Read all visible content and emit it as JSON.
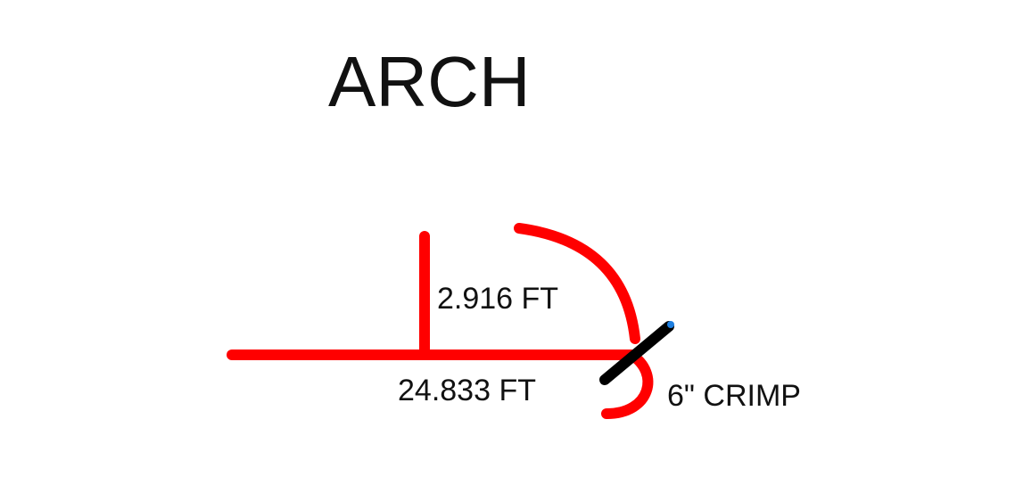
{
  "title": "ARCH",
  "dimensions": {
    "height_label": "2.916 FT",
    "length_label": "24.833 FT",
    "crimp_label": "6\" CRIMP"
  },
  "colors": {
    "profile_stroke": "#ff0000",
    "crimp_tool": "#000000",
    "crimp_tip": "#1e7fe0",
    "text": "#111111",
    "background": "#ffffff"
  }
}
